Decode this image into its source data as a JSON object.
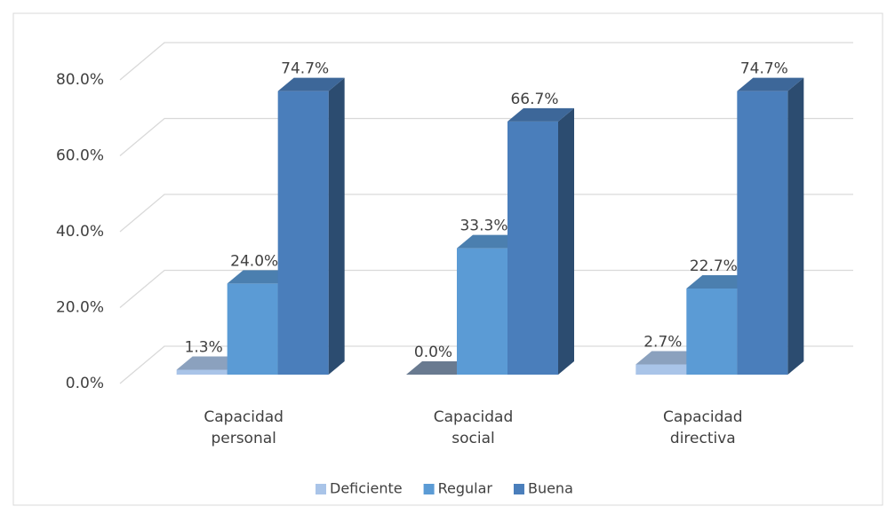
{
  "chart_data": {
    "type": "bar3d",
    "categories": [
      "Capacidad personal",
      "Capacidad social",
      "Capacidad directiva"
    ],
    "series": [
      {
        "name": "Deficiente",
        "color": "#a9c4e8",
        "values": [
          1.3,
          0.0,
          2.7
        ],
        "value_labels": [
          "1.3%",
          "0.0%",
          "2.7%"
        ]
      },
      {
        "name": "Regular",
        "color": "#5b9bd5",
        "values": [
          24.0,
          33.3,
          22.7
        ],
        "value_labels": [
          "24.0%",
          "33.3%",
          "22.7%"
        ]
      },
      {
        "name": "Buena",
        "color": "#4a7ebb",
        "values": [
          74.7,
          66.7,
          74.7
        ],
        "value_labels": [
          "74.7%",
          "66.7%",
          "74.7%"
        ]
      }
    ],
    "ylim": [
      0,
      80
    ],
    "yticks": [
      {
        "value": 0,
        "label": "0.0%"
      },
      {
        "value": 20,
        "label": "20.0%"
      },
      {
        "value": 40,
        "label": "40.0%"
      },
      {
        "value": 60,
        "label": "60.0%"
      },
      {
        "value": 80,
        "label": "80.0%"
      }
    ],
    "grid": true,
    "legend": "bottom"
  }
}
